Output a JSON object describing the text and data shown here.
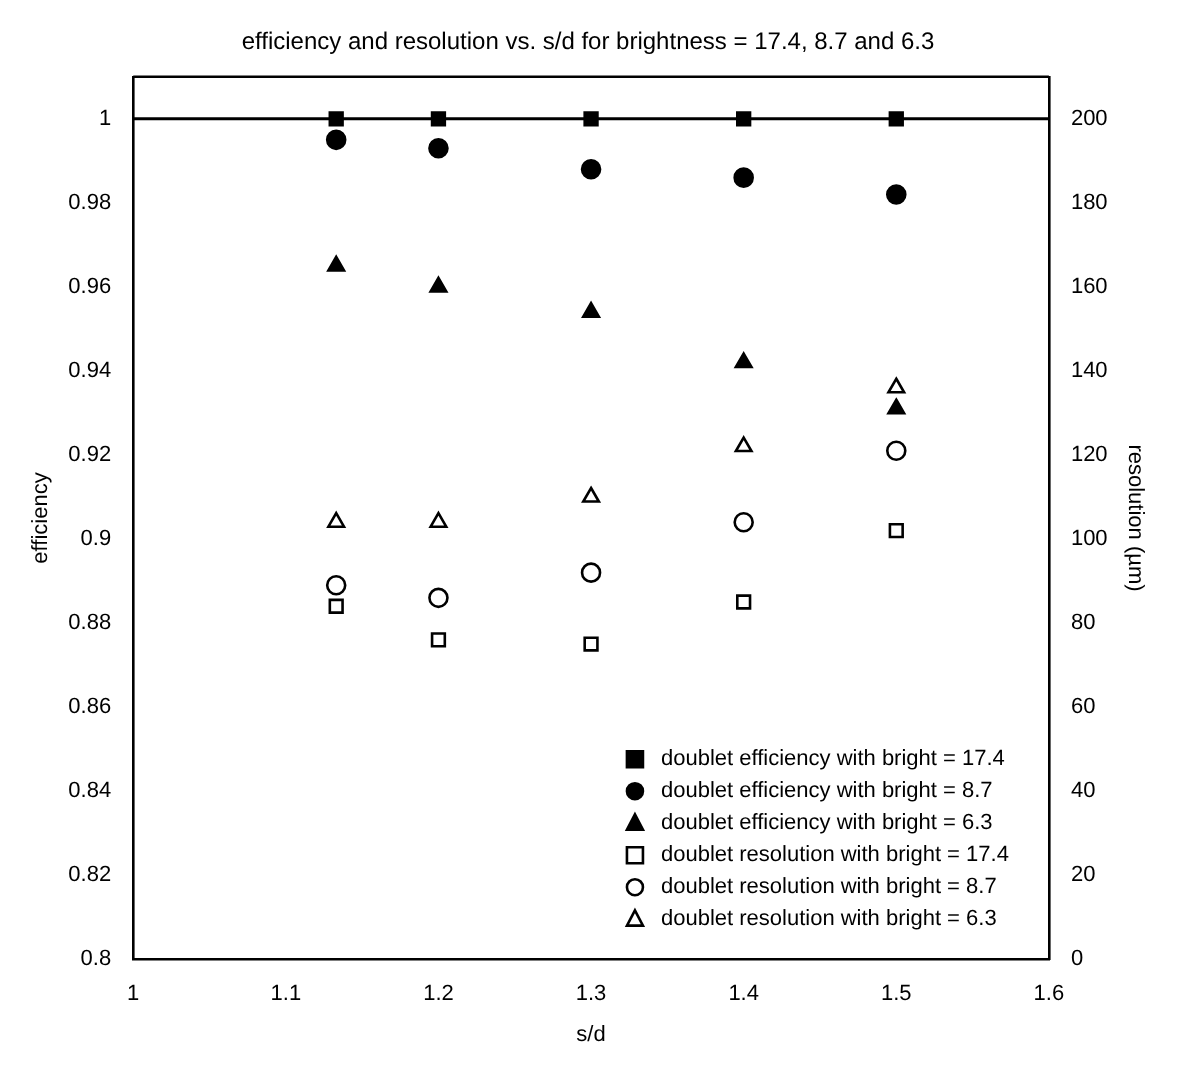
{
  "chart_data": {
    "type": "scatter",
    "title": "efficiency and resolution vs. s/d for brightness = 17.4, 8.7 and 6.3",
    "xlabel": "s/d",
    "ylabel": "efficiency",
    "y2label": "resolution (µm)",
    "xlim": [
      1,
      1.6
    ],
    "xticks": [
      1,
      1.1,
      1.2,
      1.3,
      1.4,
      1.5,
      1.6
    ],
    "ylim": [
      0.8,
      1.01
    ],
    "yticks": [
      0.8,
      0.82,
      0.84,
      0.86,
      0.88,
      0.9,
      0.92,
      0.94,
      0.96,
      0.98,
      1
    ],
    "y2lim": [
      0,
      210
    ],
    "y2ticks": [
      0,
      20,
      40,
      60,
      80,
      100,
      120,
      140,
      160,
      180,
      200
    ],
    "x": [
      1.133,
      1.2,
      1.3,
      1.4,
      1.5
    ],
    "series": [
      {
        "name": "doublet efficiency with bright = 17.4",
        "color": "#000000",
        "marker": "square",
        "values": [
          1,
          1,
          1,
          1,
          1
        ]
      },
      {
        "name": "doublet efficiency with bright = 8.7",
        "color": "#000000",
        "marker": "circle",
        "values": [
          0.995,
          0.993,
          0.988,
          0.986,
          0.982
        ]
      },
      {
        "name": "doublet efficiency with bright = 6.3",
        "color": "#000000",
        "marker": "triangle",
        "values": [
          0.965,
          0.96,
          0.954,
          0.942,
          0.931
        ]
      },
      {
        "name": "doublet resolution with bright = 17.4",
        "color": "#000000",
        "marker": "square",
        "axis": "y2",
        "values": [
          84,
          76,
          75,
          85,
          102
        ]
      },
      {
        "name": "doublet resolution with bright = 8.7",
        "color": "#000000",
        "marker": "circle",
        "axis": "y2",
        "values": [
          89,
          86,
          92,
          104,
          121
        ]
      },
      {
        "name": "doublet resolution with bright = 6.3",
        "color": "#000000",
        "marker": "triangle",
        "axis": "y2",
        "values": [
          104,
          104,
          110,
          122,
          136
        ]
      }
    ],
    "ref_lines": [
      {
        "axis": "y",
        "value": 1,
        "color": "#000000",
        "line_style": "solid"
      }
    ],
    "legend": "bottom right",
    "grid": false
  }
}
